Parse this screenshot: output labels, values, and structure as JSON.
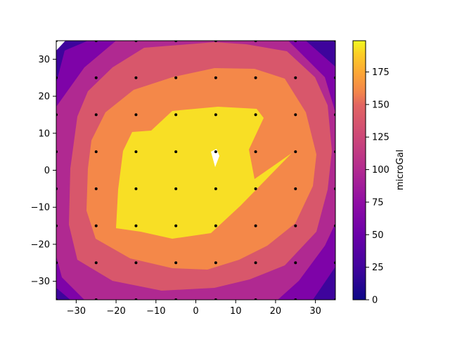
{
  "chart_data": {
    "type": "contour",
    "title": "",
    "xlabel": "",
    "ylabel": "",
    "xlim": [
      -35,
      35
    ],
    "ylim": [
      -35,
      35
    ],
    "x_ticks": [
      -30,
      -20,
      -10,
      0,
      10,
      20,
      30
    ],
    "y_ticks": [
      -30,
      -20,
      -10,
      0,
      10,
      20,
      30
    ],
    "grid": false,
    "colormap": "plasma",
    "colorbar": {
      "label": "microGal",
      "range": [
        0,
        199
      ],
      "ticks": [
        0,
        25,
        50,
        75,
        100,
        125,
        150,
        175
      ]
    },
    "levels": [
      {
        "value": 25,
        "color": "#3e049c"
      },
      {
        "value": 50,
        "color": "#7e03a8"
      },
      {
        "value": 75,
        "color": "#b02991"
      },
      {
        "value": 100,
        "color": "#d8576b"
      },
      {
        "value": 125,
        "color": "#f48849"
      },
      {
        "value": 150,
        "color": "#fdc328"
      },
      {
        "value": 175,
        "color": "#f8df25"
      }
    ],
    "station_x": [
      -35,
      -25,
      -15,
      -5,
      5,
      15,
      25,
      35
    ],
    "station_y": [
      35,
      25,
      15,
      5,
      -5,
      -15,
      -25,
      -35
    ],
    "station_color": "#000000"
  }
}
